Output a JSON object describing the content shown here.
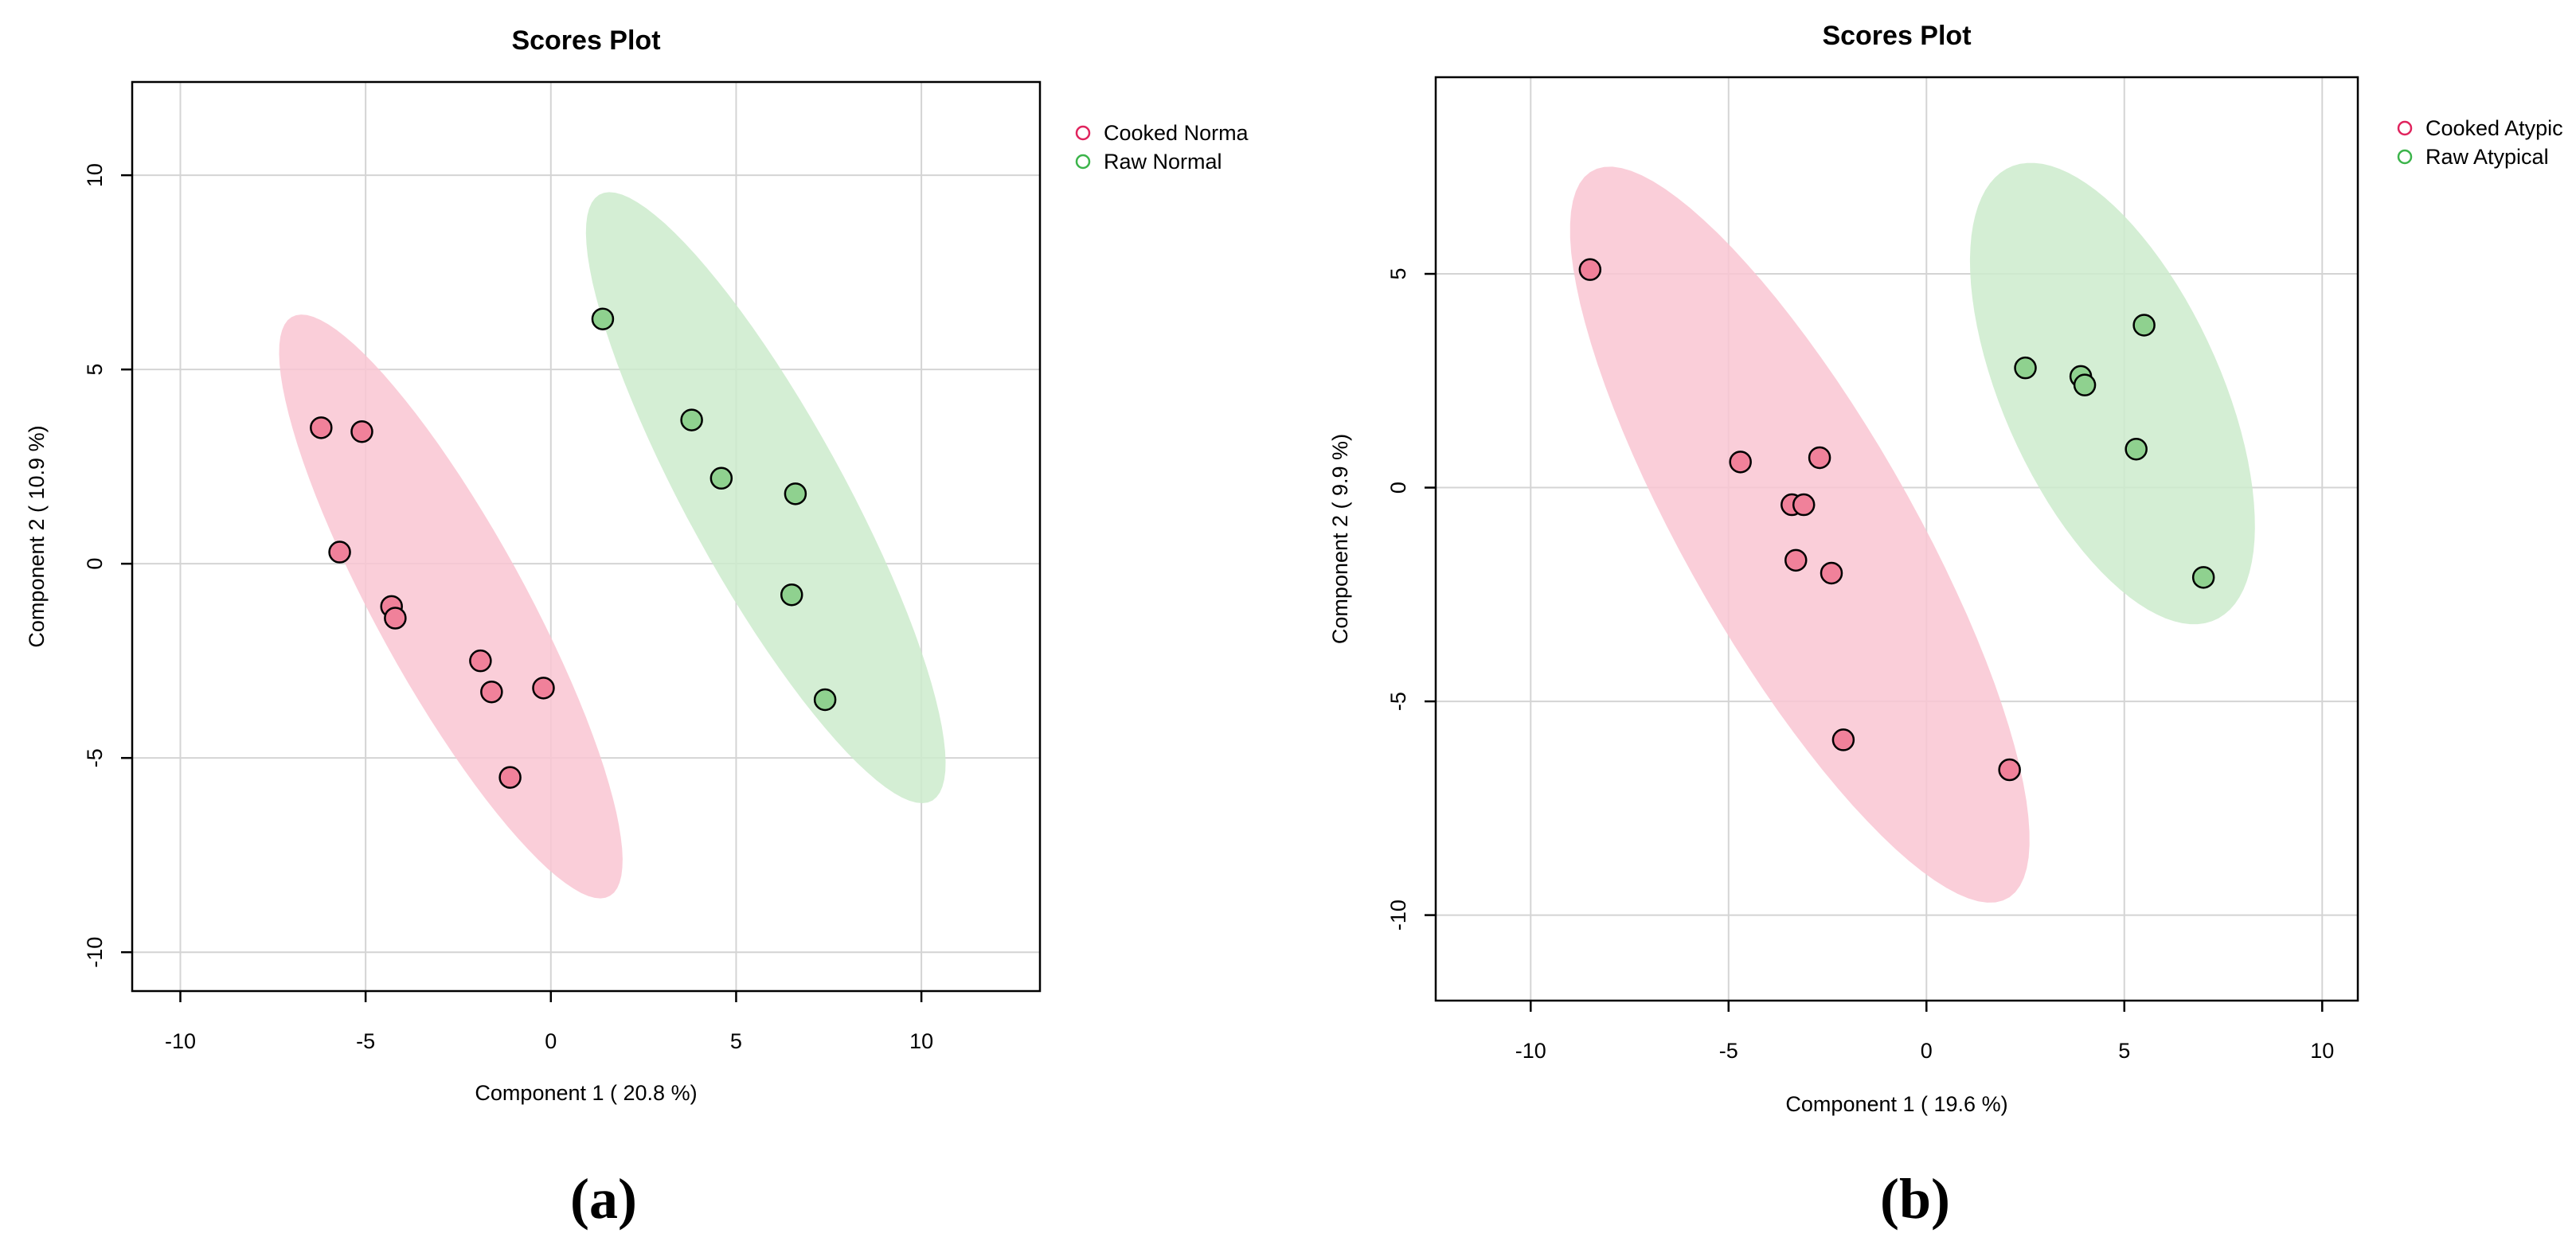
{
  "chart_data": [
    {
      "type": "scatter",
      "panel_label": "(a)",
      "title": "Scores Plot",
      "xlabel": "Component 1 ( 20.8 %)",
      "ylabel": "Component 2 ( 10.9 %)",
      "xlim": [
        -11.3,
        13.2
      ],
      "ylim": [
        -11,
        12.4
      ],
      "xticks": [
        -10,
        -5,
        0,
        5,
        10
      ],
      "yticks": [
        -10,
        -5,
        0,
        5,
        10
      ],
      "grid": true,
      "legend_position": "right-top",
      "series": [
        {
          "name": "Cooked Normal",
          "legend_text": "Cooked Norma",
          "color": "#f0819a",
          "ellipse_color": "#f9c6d2",
          "legend_color": "#e0245e",
          "x": [
            -6.2,
            -5.1,
            -5.7,
            -4.3,
            -4.2,
            -1.9,
            -1.6,
            -0.2,
            -1.1
          ],
          "y": [
            3.5,
            3.4,
            0.3,
            -1.1,
            -1.4,
            -2.5,
            -3.3,
            -3.2,
            -5.5
          ],
          "ellipse": {
            "cx": -2.7,
            "cy": -1.1,
            "rx": 8.6,
            "ry": 2.0,
            "angle_deg": -60
          }
        },
        {
          "name": "Raw Normal",
          "legend_text": "Raw Normal",
          "color": "#8fd18f",
          "ellipse_color": "#cdebcd",
          "legend_color": "#3cb44b",
          "x": [
            1.4,
            3.8,
            4.6,
            6.6,
            6.5,
            7.4
          ],
          "y": [
            6.3,
            3.7,
            2.2,
            1.8,
            -0.8,
            -3.5
          ],
          "ellipse": {
            "cx": 5.8,
            "cy": 1.7,
            "rx": 9.0,
            "ry": 2.1,
            "angle_deg": -60
          }
        }
      ]
    },
    {
      "type": "scatter",
      "panel_label": "(b)",
      "title": "Scores Plot",
      "xlabel": "Component 1 ( 19.6 %)",
      "ylabel": "Component 2 ( 9.9 %)",
      "xlim": [
        -12.4,
        10.9
      ],
      "ylim": [
        -12,
        9.6
      ],
      "xticks": [
        -10,
        -5,
        0,
        5,
        10
      ],
      "yticks": [
        -10,
        -5,
        0,
        5
      ],
      "grid": true,
      "legend_position": "right-top",
      "series": [
        {
          "name": "Cooked Atypical",
          "legend_text": "Cooked Atypic",
          "color": "#f0819a",
          "ellipse_color": "#f9c6d2",
          "legend_color": "#e0245e",
          "x": [
            -8.5,
            -4.7,
            -2.7,
            -3.4,
            -3.1,
            -3.3,
            -2.4,
            -2.1,
            2.1
          ],
          "y": [
            5.1,
            0.6,
            0.7,
            -0.4,
            -0.4,
            -1.7,
            -2.0,
            -5.9,
            -6.6
          ],
          "ellipse": {
            "cx": -3.2,
            "cy": -1.1,
            "rx": 10.0,
            "ry": 2.8,
            "angle_deg": -58
          }
        },
        {
          "name": "Raw Atypical",
          "legend_text": "Raw Atypical",
          "color": "#8fd18f",
          "ellipse_color": "#cdebcd",
          "legend_color": "#3cb44b",
          "x": [
            2.5,
            3.9,
            4.0,
            5.5,
            5.3,
            7.0
          ],
          "y": [
            2.8,
            2.6,
            2.4,
            3.8,
            0.9,
            -2.1
          ],
          "ellipse": {
            "cx": 4.7,
            "cy": 2.2,
            "rx": 5.9,
            "ry": 2.7,
            "angle_deg": -63
          }
        }
      ]
    }
  ]
}
